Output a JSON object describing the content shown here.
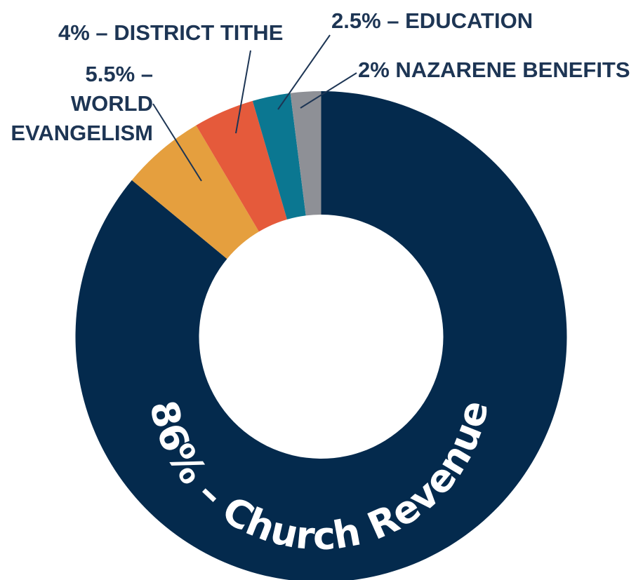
{
  "chart_data": {
    "type": "pie",
    "subtype": "donut",
    "slices": [
      {
        "label_lines": [
          "86% – Church Revenue"
        ],
        "value": 86,
        "color": "#042a4d"
      },
      {
        "label_lines": [
          "5.5% –",
          "WORLD",
          "EVANGELISM"
        ],
        "value": 5.5,
        "color": "#e59f3e"
      },
      {
        "label_lines": [
          "4% – DISTRICT TITHE"
        ],
        "value": 4,
        "color": "#e55a3b"
      },
      {
        "label_lines": [
          "2.5% –  EDUCATION"
        ],
        "value": 2.5,
        "color": "#0b7791"
      },
      {
        "label_lines": [
          "2% NAZARENE BENEFITS"
        ],
        "value": 2,
        "color": "#8e9096"
      }
    ],
    "legend": "none",
    "label_color": "#1d3554",
    "leader_line_color": "#1d3554"
  }
}
